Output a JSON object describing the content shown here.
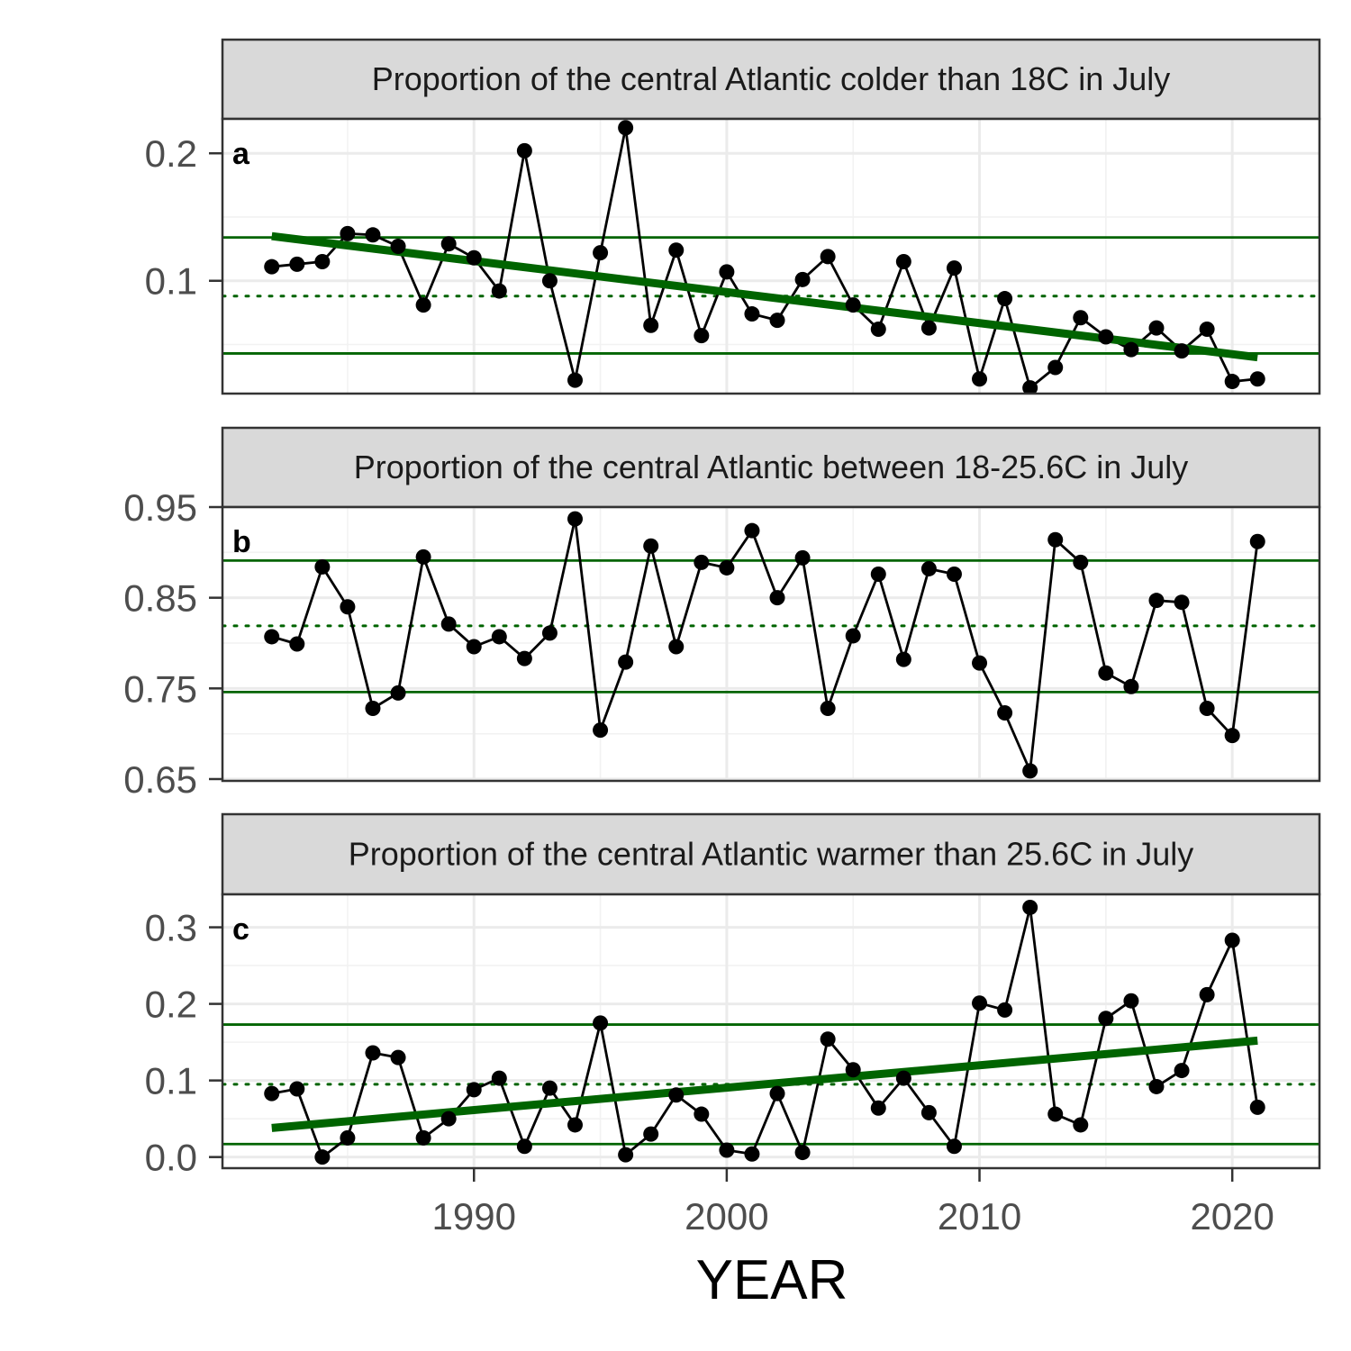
{
  "colors": {
    "strip_bg": "#d9d9d9",
    "panel_border": "#333333",
    "grid_major": "#ebebeb",
    "grid_minor": "#f2f2f2",
    "series_line": "#000000",
    "reference_lines": "#006400",
    "trend_line": "#006400"
  },
  "chart_data": [
    {
      "type": "line",
      "panel_label": "a",
      "title": "Proportion of the central Atlantic colder than 18C in July",
      "xlabel": "YEAR",
      "ylabel": "",
      "x": [
        1982,
        1983,
        1984,
        1985,
        1986,
        1987,
        1988,
        1989,
        1990,
        1991,
        1992,
        1993,
        1994,
        1995,
        1996,
        1997,
        1998,
        1999,
        2000,
        2001,
        2002,
        2003,
        2004,
        2005,
        2006,
        2007,
        2008,
        2009,
        2010,
        2011,
        2012,
        2013,
        2014,
        2015,
        2016,
        2017,
        2018,
        2019,
        2020,
        2021
      ],
      "values": [
        0.111,
        0.113,
        0.115,
        0.137,
        0.136,
        0.127,
        0.081,
        0.129,
        0.118,
        0.092,
        0.202,
        0.1,
        0.022,
        0.122,
        0.22,
        0.065,
        0.124,
        0.057,
        0.107,
        0.074,
        0.069,
        0.101,
        0.119,
        0.081,
        0.062,
        0.115,
        0.063,
        0.11,
        0.023,
        0.086,
        0.016,
        0.032,
        0.071,
        0.056,
        0.046,
        0.063,
        0.045,
        0.062,
        0.021,
        0.023
      ],
      "ylim": [
        0.0115,
        0.227
      ],
      "yticks": [
        0.1,
        0.2
      ],
      "ytick_labels": [
        "0.1",
        "0.2"
      ],
      "mean": 0.088,
      "upper_band": 0.134,
      "lower_band": 0.043,
      "trend": {
        "x": [
          1982,
          2021
        ],
        "y": [
          0.135,
          0.04
        ]
      }
    },
    {
      "type": "line",
      "panel_label": "b",
      "title": "Proportion of the central Atlantic between 18-25.6C in July",
      "xlabel": "YEAR",
      "ylabel": "",
      "x": [
        1982,
        1983,
        1984,
        1985,
        1986,
        1987,
        1988,
        1989,
        1990,
        1991,
        1992,
        1993,
        1994,
        1995,
        1996,
        1997,
        1998,
        1999,
        2000,
        2001,
        2002,
        2003,
        2004,
        2005,
        2006,
        2007,
        2008,
        2009,
        2010,
        2011,
        2012,
        2013,
        2014,
        2015,
        2016,
        2017,
        2018,
        2019,
        2020,
        2021
      ],
      "values": [
        0.807,
        0.799,
        0.884,
        0.84,
        0.728,
        0.745,
        0.895,
        0.821,
        0.796,
        0.807,
        0.783,
        0.811,
        0.937,
        0.704,
        0.779,
        0.907,
        0.796,
        0.889,
        0.883,
        0.924,
        0.85,
        0.894,
        0.728,
        0.808,
        0.876,
        0.782,
        0.882,
        0.876,
        0.778,
        0.723,
        0.659,
        0.914,
        0.889,
        0.767,
        0.752,
        0.847,
        0.845,
        0.728,
        0.698,
        0.912
      ],
      "ylim": [
        0.648,
        0.95
      ],
      "yticks": [
        0.65,
        0.75,
        0.85,
        0.95
      ],
      "ytick_labels": [
        "0.65",
        "0.75",
        "0.85",
        "0.95"
      ],
      "mean": 0.819,
      "upper_band": 0.891,
      "lower_band": 0.746,
      "trend": null
    },
    {
      "type": "line",
      "panel_label": "c",
      "title": "Proportion of the central Atlantic warmer than 25.6C in July",
      "xlabel": "YEAR",
      "ylabel": "",
      "x": [
        1982,
        1983,
        1984,
        1985,
        1986,
        1987,
        1988,
        1989,
        1990,
        1991,
        1992,
        1993,
        1994,
        1995,
        1996,
        1997,
        1998,
        1999,
        2000,
        2001,
        2002,
        2003,
        2004,
        2005,
        2006,
        2007,
        2008,
        2009,
        2010,
        2011,
        2012,
        2013,
        2014,
        2015,
        2016,
        2017,
        2018,
        2019,
        2020,
        2021
      ],
      "values": [
        0.083,
        0.089,
        0.0,
        0.025,
        0.136,
        0.13,
        0.025,
        0.05,
        0.088,
        0.103,
        0.014,
        0.09,
        0.042,
        0.175,
        0.003,
        0.03,
        0.081,
        0.056,
        0.009,
        0.004,
        0.083,
        0.006,
        0.154,
        0.114,
        0.064,
        0.103,
        0.058,
        0.014,
        0.201,
        0.192,
        0.326,
        0.056,
        0.042,
        0.181,
        0.204,
        0.092,
        0.113,
        0.212,
        0.283,
        0.065
      ],
      "ylim": [
        -0.0145,
        0.343
      ],
      "yticks": [
        0.0,
        0.1,
        0.2,
        0.3
      ],
      "ytick_labels": [
        "0.0",
        "0.1",
        "0.2",
        "0.3"
      ],
      "mean": 0.095,
      "upper_band": 0.173,
      "lower_band": 0.017,
      "trend": {
        "x": [
          1982,
          2021
        ],
        "y": [
          0.038,
          0.152
        ]
      }
    }
  ],
  "x_axis": {
    "title": "YEAR",
    "xlim": [
      1980.05,
      2023.45
    ],
    "ticks": [
      1990,
      2000,
      2010,
      2020
    ],
    "tick_labels": [
      "1990",
      "2000",
      "2010",
      "2020"
    ]
  }
}
